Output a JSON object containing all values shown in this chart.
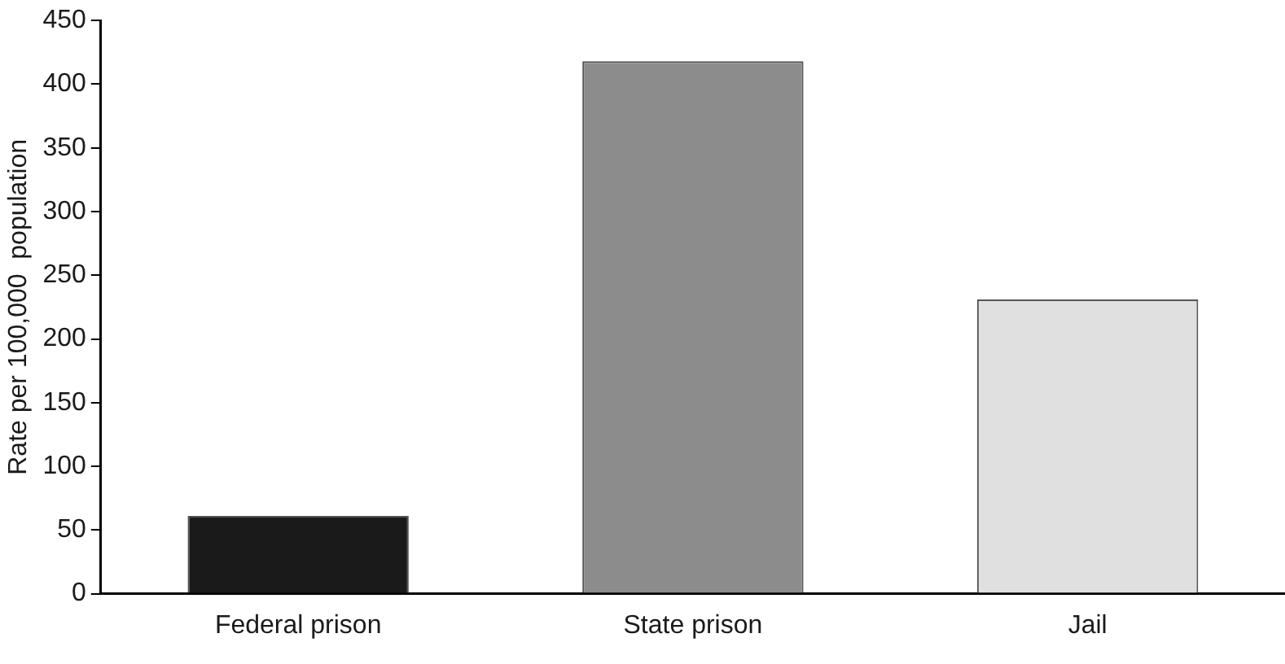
{
  "chart_data": {
    "type": "bar",
    "ylabel": "Rate per 100,000  population",
    "categories": [
      "Federal prison",
      "State prison",
      "Jail"
    ],
    "values": [
      61,
      418,
      231
    ],
    "colors": [
      "#1a1a1a",
      "#8c8c8c",
      "#e0e0e0"
    ],
    "ylim": [
      0,
      450
    ],
    "yticks": [
      0,
      50,
      100,
      150,
      200,
      250,
      300,
      350,
      400,
      450
    ],
    "grid": false,
    "legend": false
  }
}
